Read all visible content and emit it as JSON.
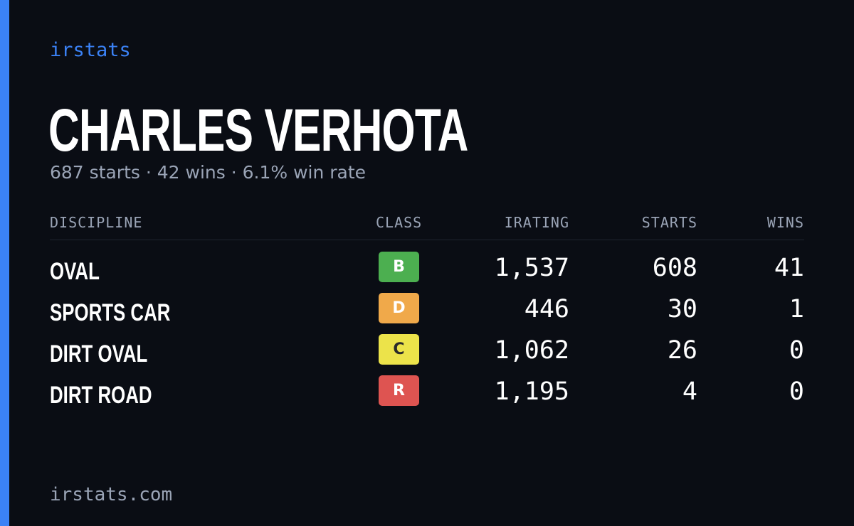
{
  "brand": "irstats",
  "player": {
    "name": "CHARLES VERHOTA",
    "summary": "687 starts · 42 wins · 6.1% win rate"
  },
  "table": {
    "headers": {
      "discipline": "DISCIPLINE",
      "class": "CLASS",
      "irating": "IRATING",
      "starts": "STARTS",
      "wins": "WINS"
    },
    "rows": [
      {
        "discipline": "OVAL",
        "class": "B",
        "class_color": "#4caf50",
        "class_text_color": "#ffffff",
        "irating": "1,537",
        "starts": "608",
        "wins": "41"
      },
      {
        "discipline": "SPORTS CAR",
        "class": "D",
        "class_color": "#f0a94a",
        "class_text_color": "#ffffff",
        "irating": "446",
        "starts": "30",
        "wins": "1"
      },
      {
        "discipline": "DIRT OVAL",
        "class": "C",
        "class_color": "#ece34a",
        "class_text_color": "#2a2a2a",
        "irating": "1,062",
        "starts": "26",
        "wins": "0"
      },
      {
        "discipline": "DIRT ROAD",
        "class": "R",
        "class_color": "#de5451",
        "class_text_color": "#ffffff",
        "irating": "1,195",
        "starts": "4",
        "wins": "0"
      }
    ]
  },
  "footer": "irstats.com",
  "colors": {
    "background": "#0a0d14",
    "accent": "#3b82f6",
    "muted_text": "#9aa4b6"
  }
}
